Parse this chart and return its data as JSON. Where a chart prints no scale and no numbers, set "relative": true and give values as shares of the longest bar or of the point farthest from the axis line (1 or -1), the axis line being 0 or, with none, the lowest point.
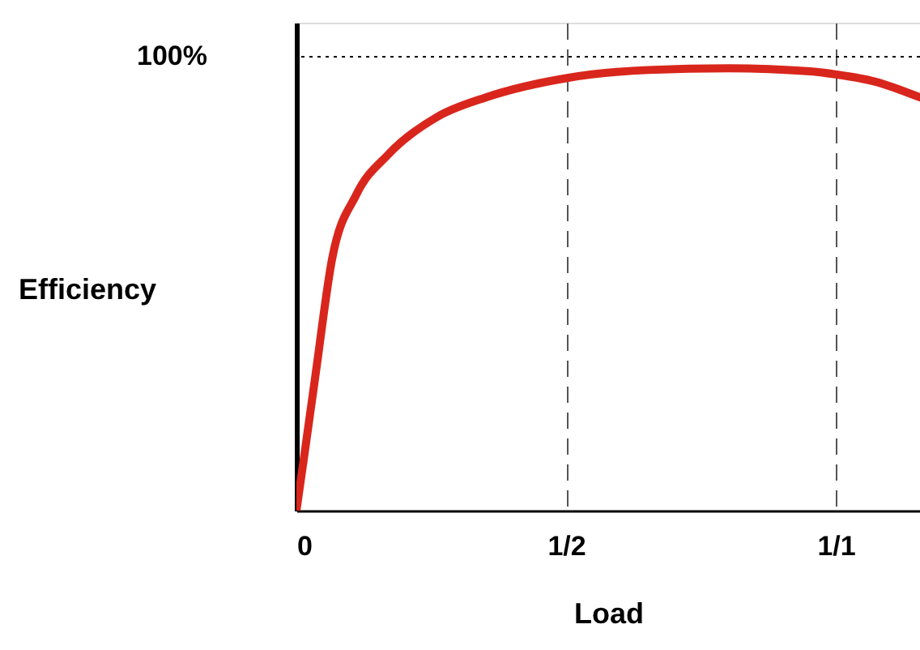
{
  "chart_data": {
    "type": "line",
    "xlabel": "Load",
    "ylabel": "Efficiency",
    "relative": true,
    "x": [
      0,
      0.015,
      0.036,
      0.066,
      0.111,
      0.171,
      0.261,
      0.351,
      0.502,
      0.652,
      0.802,
      0.952,
      1.0,
      1.072,
      1.156
    ],
    "series": [
      {
        "color": "#d9261c",
        "values": [
          0,
          0.128,
          0.312,
          0.568,
          0.714,
          0.806,
          0.89,
          0.934,
          0.978,
          0.996,
          1,
          0.993,
          0.986,
          0.97,
          0.934
        ]
      }
    ],
    "xlim": [
      0,
      1.156
    ],
    "xticks": [
      0,
      {
        "value": 0.5,
        "label": "1/2"
      },
      {
        "value": 1,
        "label": "1/1"
      }
    ],
    "grid": "x",
    "line_style": "solid",
    "annotations": [
      "100%"
    ],
    "ref_lines": [
      {
        "axis": "y",
        "value": 1.026,
        "line_style": "dotted",
        "color": "#000000"
      }
    ]
  }
}
